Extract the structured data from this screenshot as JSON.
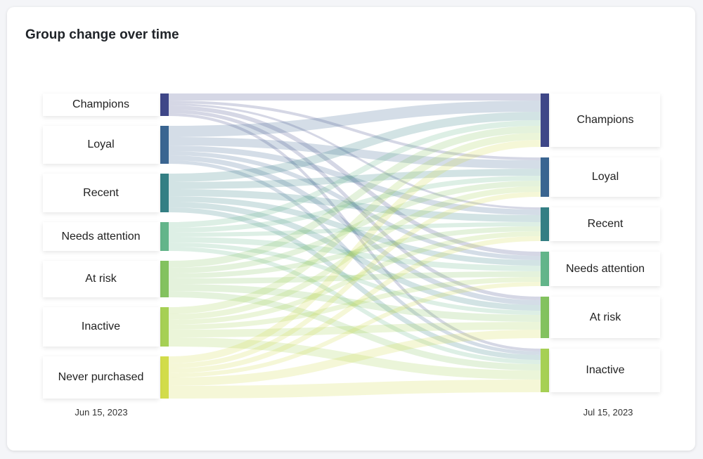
{
  "title": "Group change over time",
  "chart_data": {
    "type": "sankey",
    "title": "Group change over time",
    "source_label": "Jun 15, 2023",
    "target_label": "Jul 15, 2023",
    "sources": [
      "Champions",
      "Loyal",
      "Recent",
      "Needs attention",
      "At risk",
      "Inactive",
      "Never purchased"
    ],
    "targets": [
      "Champions",
      "Loyal",
      "Recent",
      "Needs attention",
      "At risk",
      "Inactive"
    ],
    "flows": [
      [
        10,
        4,
        3,
        6,
        5,
        4
      ],
      [
        16,
        12,
        8,
        6,
        7,
        5
      ],
      [
        12,
        10,
        10,
        8,
        8,
        7
      ],
      [
        8,
        7,
        6,
        8,
        6,
        6
      ],
      [
        10,
        8,
        7,
        8,
        10,
        9
      ],
      [
        10,
        8,
        7,
        7,
        11,
        13
      ],
      [
        10,
        7,
        7,
        6,
        12,
        18
      ]
    ],
    "colors": {
      "Champions": "#3f4788",
      "Loyal": "#3a6591",
      "Recent": "#347f84",
      "Needs attention": "#63b58a",
      "At risk": "#83c25f",
      "Inactive": "#a6d054",
      "Never purchased": "#d2dc4a"
    }
  }
}
